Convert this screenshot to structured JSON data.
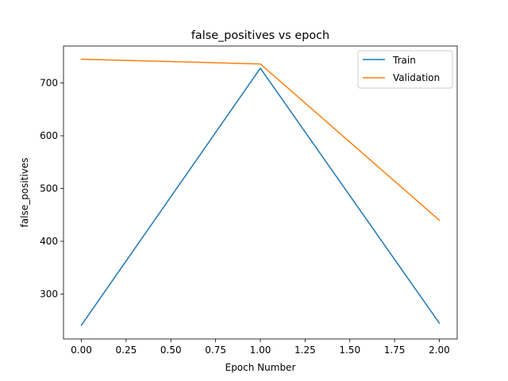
{
  "chart_data": {
    "type": "line",
    "title": "false_positives vs epoch",
    "xlabel": "Epoch Number",
    "ylabel": "false_positives",
    "x": [
      0,
      1,
      2
    ],
    "xlim": [
      -0.1,
      2.1
    ],
    "ylim": [
      215,
      770
    ],
    "xticks": [
      0.0,
      0.25,
      0.5,
      0.75,
      1.0,
      1.25,
      1.5,
      1.75,
      2.0
    ],
    "xtick_labels": [
      "0.00",
      "0.25",
      "0.50",
      "0.75",
      "1.00",
      "1.25",
      "1.50",
      "1.75",
      "2.00"
    ],
    "yticks": [
      300,
      400,
      500,
      600,
      700
    ],
    "ytick_labels": [
      "300",
      "400",
      "500",
      "600",
      "700"
    ],
    "grid": false,
    "legend_position": "top-right",
    "series": [
      {
        "name": "Train",
        "color": "#1f77b4",
        "values": [
          241,
          728,
          245
        ]
      },
      {
        "name": "Validation",
        "color": "#ff7f0e",
        "values": [
          745,
          736,
          440
        ]
      }
    ]
  }
}
